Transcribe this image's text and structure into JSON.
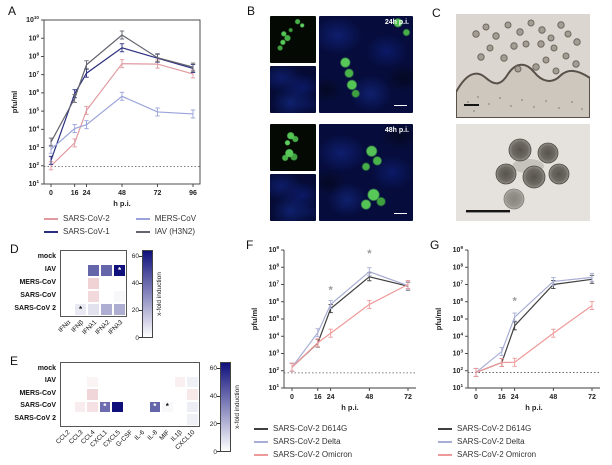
{
  "panels": {
    "a": {
      "label": "A"
    },
    "b": {
      "label": "B",
      "caption_24": "24h p.i.",
      "caption_48": "48h p.i."
    },
    "c": {
      "label": "C"
    },
    "d": {
      "label": "D"
    },
    "e": {
      "label": "E"
    },
    "f": {
      "label": "F"
    },
    "g": {
      "label": "G"
    }
  },
  "chart_data": [
    {
      "panel": "A",
      "type": "line",
      "xlabel": "h p.i.",
      "ylabel": "pfu/ml",
      "x": [
        0,
        16,
        24,
        48,
        72,
        96
      ],
      "yscale": "log",
      "ylim": [
        10,
        10000000000
      ],
      "detection_limit": 90,
      "frame": "box",
      "legend_position": "below",
      "series": [
        {
          "name": "SARS-CoV-2",
          "color": "#e09aa0",
          "values": [
            100,
            1800,
            110000,
            40000000,
            38000000,
            11000000
          ]
        },
        {
          "name": "SARS-CoV-1",
          "color": "#2c2f80",
          "values": [
            200,
            900000,
            12000000,
            300000000,
            80000000,
            22000000
          ]
        },
        {
          "name": "MERS-CoV",
          "color": "#9aa4da",
          "values": [
            800,
            11000,
            18000,
            650000,
            90000,
            70000
          ]
        },
        {
          "name": "IAV (H3N2)",
          "color": "#63646e",
          "values": [
            2000,
            500000,
            35000000,
            1500000000,
            85000000,
            26000000
          ]
        }
      ]
    },
    {
      "panel": "F",
      "type": "line",
      "xlabel": "h p.i.",
      "ylabel": "pfu/ml",
      "x": [
        0,
        16,
        24,
        48,
        72
      ],
      "yscale": "log",
      "ylim": [
        10,
        1000000000
      ],
      "detection_limit": 75,
      "frame": "L",
      "legend_position": "below",
      "series": [
        {
          "name": "SARS-CoV-2 D614G",
          "color": "#404040",
          "values": [
            160,
            4000,
            400000,
            28000000,
            8000000
          ]
        },
        {
          "name": "SARS-CoV-2 Delta",
          "color": "#a8aed4",
          "values": [
            160,
            16000,
            700000,
            55000000,
            8500000
          ]
        },
        {
          "name": "SARS-CoV-2 Omicron",
          "color": "#ef9a9a",
          "values": [
            160,
            4200,
            15000,
            700000,
            10000000
          ]
        }
      ],
      "annotations": [
        {
          "x": 24,
          "y": 3000000,
          "text": "*"
        },
        {
          "x": 48,
          "y": 400000000,
          "text": "*"
        }
      ]
    },
    {
      "panel": "G",
      "type": "line",
      "xlabel": "h p.i.",
      "ylabel": "pfu/ml",
      "x": [
        0,
        16,
        24,
        48,
        72
      ],
      "yscale": "log",
      "ylim": [
        10,
        1000000000
      ],
      "detection_limit": 80,
      "frame": "L",
      "legend_position": "below",
      "series": [
        {
          "name": "SARS-CoV-2 D614G",
          "color": "#404040",
          "values": [
            80,
            300,
            40000,
            10000000,
            20000000
          ]
        },
        {
          "name": "SARS-CoV-2 Delta",
          "color": "#a8aed4",
          "values": [
            80,
            1300,
            130000,
            15000000,
            26000000
          ]
        },
        {
          "name": "SARS-CoV-2 Omicron",
          "color": "#ef9a9a",
          "values": [
            80,
            300,
            310,
            15000,
            600000
          ]
        }
      ],
      "annotations": [
        {
          "x": 24,
          "y": 700000,
          "text": "*"
        }
      ]
    },
    {
      "panel": "D",
      "type": "heatmap",
      "rows": [
        "mock",
        "IAV",
        "MERS-CoV",
        "SARS-CoV",
        "SARS-CoV 2"
      ],
      "cols": [
        "IFNα",
        "IFNβ",
        "IFNλ1",
        "IFNλ2",
        "IFNλ3"
      ],
      "values": [
        [
          0,
          0,
          0,
          0,
          0
        ],
        [
          0,
          0,
          42,
          42,
          65
        ],
        [
          0,
          0,
          -12,
          0,
          0
        ],
        [
          0,
          0,
          -10,
          0,
          2
        ],
        [
          0,
          6,
          8,
          22,
          22
        ]
      ],
      "sig": [
        {
          "r": 1,
          "c": 4,
          "color": "#ffffff"
        },
        {
          "r": 4,
          "c": 1,
          "color": "#111111"
        }
      ],
      "colorbar": {
        "ticks": [
          0,
          20,
          40,
          60
        ],
        "max": 65,
        "label": "x-fold induction",
        "min_color": "#ffffff",
        "max_color": "#10107c",
        "neg_color": "#d98f97"
      }
    },
    {
      "panel": "E",
      "type": "heatmap",
      "rows": [
        "mock",
        "IAV",
        "MERS-CoV",
        "SARS-CoV",
        "SARS-CoV 2"
      ],
      "cols": [
        "CCL2",
        "CCL3",
        "CCL4",
        "CXCL1",
        "CXCL5",
        "G-CSF",
        "IL-6",
        "IL-8",
        "MIF",
        "IL1β",
        "CXCL10"
      ],
      "values": [
        [
          0,
          0,
          0,
          0,
          0,
          0,
          0,
          0,
          0,
          0,
          0
        ],
        [
          0,
          0,
          -3,
          0,
          0,
          0,
          0,
          0,
          0,
          -4,
          4
        ],
        [
          0,
          0,
          -11,
          0,
          0,
          0,
          0,
          0,
          0,
          0,
          -6
        ],
        [
          0,
          -5,
          -8,
          40,
          65,
          0,
          0,
          42,
          2,
          0,
          5
        ],
        [
          0,
          0,
          0,
          0,
          0,
          0,
          0,
          0,
          0,
          0,
          4
        ]
      ],
      "sig": [
        {
          "r": 3,
          "c": 3,
          "color": "#ffffff"
        },
        {
          "r": 3,
          "c": 7,
          "color": "#ffffff"
        },
        {
          "r": 3,
          "c": 8,
          "color": "#111111"
        }
      ],
      "colorbar": {
        "ticks": [
          0,
          20,
          40,
          60
        ],
        "max": 65,
        "label": "x-fold induction",
        "min_color": "#ffffff",
        "max_color": "#10107c",
        "neg_color": "#d98f97"
      }
    }
  ]
}
